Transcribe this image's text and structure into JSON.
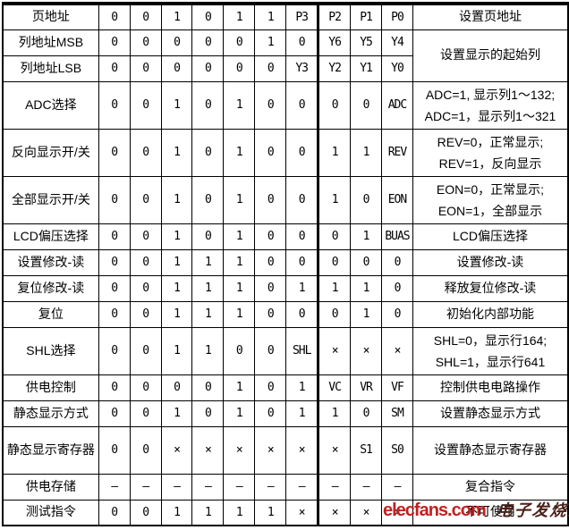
{
  "colors": {
    "border": "#000000",
    "text": "#000000",
    "background": "#ffffff",
    "watermark_red": "#c41f1f",
    "watermark_brand": "#4a2018"
  },
  "watermark": {
    "logo": "elecfans.com",
    "brand": "电子发烧友"
  },
  "table": {
    "rows": [
      {
        "label": "页地址",
        "bits": [
          "0",
          "0",
          "1",
          "0",
          "1",
          "1",
          "P3",
          "P2",
          "P1",
          "P0"
        ],
        "desc": [
          "设置页地址"
        ]
      },
      {
        "label": "列地址MSB",
        "bits": [
          "0",
          "0",
          "0",
          "0",
          "0",
          "1",
          "0",
          "Y6",
          "Y5",
          "Y4"
        ],
        "desc": [
          "设置显示的起始列"
        ],
        "descRowspan": 2
      },
      {
        "label": "列地址LSB",
        "bits": [
          "0",
          "0",
          "0",
          "0",
          "0",
          "0",
          "Y3",
          "Y2",
          "Y1",
          "Y0"
        ],
        "desc": null
      },
      {
        "label": "ADC选择",
        "bits": [
          "0",
          "0",
          "1",
          "0",
          "1",
          "0",
          "0",
          "0",
          "0",
          "ADC"
        ],
        "desc": [
          "ADC=1, 显示列1～132;",
          "ADC=1，显示列1～321"
        ]
      },
      {
        "label": "反向显示开/关",
        "bits": [
          "0",
          "0",
          "1",
          "0",
          "1",
          "0",
          "0",
          "1",
          "1",
          "REV"
        ],
        "desc": [
          "REV=0，正常显示;",
          "REV=1，反向显示"
        ]
      },
      {
        "label": "全部显示开/关",
        "bits": [
          "0",
          "0",
          "1",
          "0",
          "1",
          "0",
          "0",
          "1",
          "0",
          "EON"
        ],
        "desc": [
          "EON=0，正常显示;",
          "EON=1，全部显示"
        ]
      },
      {
        "label": "LCD偏压选择",
        "bits": [
          "0",
          "0",
          "1",
          "0",
          "1",
          "0",
          "0",
          "0",
          "1",
          "BUAS"
        ],
        "desc": [
          "LCD偏压选择"
        ]
      },
      {
        "label": "设置修改-读",
        "bits": [
          "0",
          "0",
          "1",
          "1",
          "1",
          "0",
          "0",
          "0",
          "0",
          "0"
        ],
        "desc": [
          "设置修改-读"
        ]
      },
      {
        "label": "复位修改-读",
        "bits": [
          "0",
          "0",
          "1",
          "1",
          "1",
          "0",
          "1",
          "1",
          "1",
          "0"
        ],
        "desc": [
          "释放复位修改-读"
        ]
      },
      {
        "label": "复位",
        "bits": [
          "0",
          "0",
          "1",
          "1",
          "1",
          "0",
          "0",
          "0",
          "1",
          "0"
        ],
        "desc": [
          "初始化内部功能"
        ]
      },
      {
        "label": "SHL选择",
        "bits": [
          "0",
          "0",
          "1",
          "1",
          "0",
          "0",
          "SHL",
          "×",
          "×",
          "×"
        ],
        "desc": [
          "SHL=0，显示行164;",
          "SHL=1，显示行641"
        ]
      },
      {
        "label": "供电控制",
        "bits": [
          "0",
          "0",
          "0",
          "0",
          "1",
          "0",
          "1",
          "VC",
          "VR",
          "VF"
        ],
        "desc": [
          "控制供电电路操作"
        ]
      },
      {
        "label": "静态显示方式",
        "bits": [
          "0",
          "0",
          "1",
          "0",
          "1",
          "0",
          "1",
          "1",
          "0",
          "SM"
        ],
        "desc": [
          "设置静态显示方式"
        ]
      },
      {
        "label": "静态显示寄存器",
        "bits": [
          "0",
          "0",
          "×",
          "×",
          "×",
          "×",
          "×",
          "×",
          "S1",
          "S0"
        ],
        "desc": [
          "设置静态显示寄存器"
        ]
      },
      {
        "label": "供电存储",
        "bits": [
          "–",
          "–",
          "–",
          "–",
          "–",
          "–",
          "–",
          "–",
          "–",
          "–"
        ],
        "desc": [
          "复合指令"
        ]
      },
      {
        "label": "测试指令",
        "bits": [
          "0",
          "0",
          "1",
          "1",
          "1",
          "1",
          "×",
          "×",
          "×",
          "×"
        ],
        "desc": [
          "不可使用"
        ]
      }
    ]
  }
}
